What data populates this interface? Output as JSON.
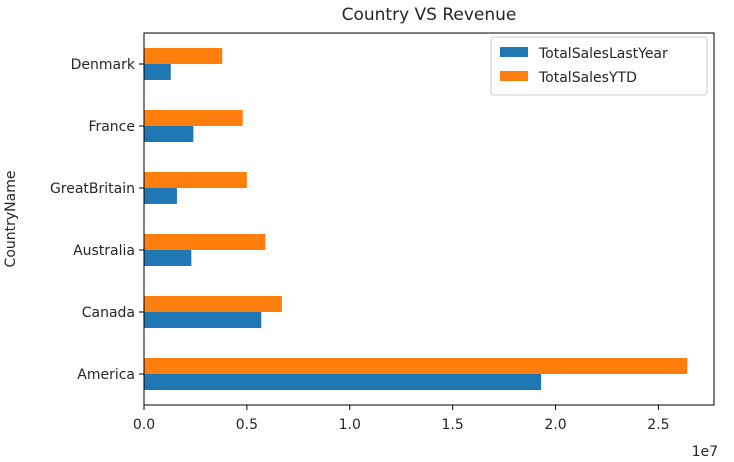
{
  "chart_data": {
    "type": "bar",
    "orientation": "horizontal",
    "title": "Country VS Revenue",
    "xlabel": "",
    "ylabel": "CountryName",
    "x_scale_label": "1e7",
    "xlim": [
      0,
      2.77
    ],
    "x_ticks": [
      0.0,
      0.5,
      1.0,
      1.5,
      2.0,
      2.5
    ],
    "x_tick_labels": [
      "0.0",
      "0.5",
      "1.0",
      "1.5",
      "2.0",
      "2.5"
    ],
    "categories": [
      "America",
      "Canada",
      "Australia",
      "GreatBritain",
      "France",
      "Denmark"
    ],
    "series": [
      {
        "name": "TotalSalesLastYear",
        "color": "#1f77b4",
        "values": [
          1.93,
          0.57,
          0.23,
          0.16,
          0.24,
          0.13
        ]
      },
      {
        "name": "TotalSalesYTD",
        "color": "#ff7f0e",
        "values": [
          2.64,
          0.67,
          0.59,
          0.5,
          0.48,
          0.38
        ]
      }
    ],
    "legend_position": "top-right",
    "grid": false
  }
}
